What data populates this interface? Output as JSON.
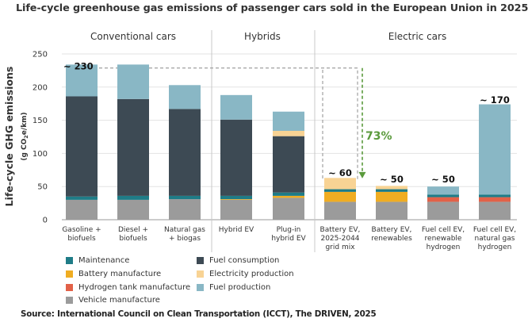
{
  "chart_data": {
    "type": "stacked-bar",
    "title": "Life-cycle greenhouse gas emissions of passenger cars sold in the European Union in 2025",
    "ylabel": "Life-cycle GHG emissions",
    "yunit_prefix": "(g CO",
    "yunit_sub": "2",
    "yunit_suffix": "e/km)",
    "ylim": [
      0,
      250
    ],
    "yticks": [
      0,
      50,
      100,
      150,
      200,
      250
    ],
    "groups": [
      {
        "label": "Conventional cars",
        "members": [
          0,
          1,
          2
        ]
      },
      {
        "label": "Hybrids",
        "members": [
          3,
          4
        ]
      },
      {
        "label": "Electric cars",
        "members": [
          5,
          6,
          7,
          8
        ]
      }
    ],
    "categories": [
      "Gasoline +\nbiofuels",
      "Diesel +\nbiofuels",
      "Natural gas\n+ biogas",
      "Hybrid EV",
      "Plug-in\nhybrid EV",
      "Battery EV,\n2025-2044\ngrid mix",
      "Battery EV,\nrenewables",
      "Fuel cell EV,\nrenewable\nhydrogen",
      "Fuel cell EV,\nnatural gas\nhydrogen"
    ],
    "series": [
      {
        "name": "Vehicle manufacture",
        "color": "#9b9b9b",
        "values": [
          30,
          30,
          31,
          30,
          33,
          27,
          27,
          27,
          27
        ]
      },
      {
        "name": "Battery manufacture",
        "color": "#f0ad22",
        "values": [
          0,
          0,
          0,
          1,
          3,
          15,
          15,
          0,
          0
        ]
      },
      {
        "name": "Hydrogen tank manufacture",
        "color": "#e26148",
        "values": [
          0,
          0,
          0,
          0,
          0,
          0,
          0,
          7,
          7
        ]
      },
      {
        "name": "Maintenance",
        "color": "#1f7c87",
        "values": [
          5,
          6,
          5,
          5,
          5,
          4,
          4,
          4,
          4
        ]
      },
      {
        "name": "Fuel consumption",
        "color": "#3d4a54",
        "values": [
          151,
          146,
          131,
          115,
          85,
          0,
          0,
          0,
          0
        ]
      },
      {
        "name": "Electricity production",
        "color": "#f8d394",
        "values": [
          0,
          0,
          0,
          0,
          8,
          17,
          5,
          0,
          0
        ]
      },
      {
        "name": "Fuel production",
        "color": "#89b7c5",
        "values": [
          48,
          52,
          36,
          37,
          29,
          0,
          0,
          12,
          136
        ]
      }
    ],
    "annotations": [
      {
        "category_index": 0,
        "text": "~ 230",
        "value": 230
      },
      {
        "category_index": 5,
        "text": "~ 60",
        "value": 60
      },
      {
        "category_index": 6,
        "text": "~ 50",
        "value": 50
      },
      {
        "category_index": 7,
        "text": "~ 50",
        "value": 50
      },
      {
        "category_index": 8,
        "text": "~ 170",
        "value": 170
      }
    ],
    "reduction_label": "73%",
    "legend": {
      "columns": [
        [
          "Maintenance",
          "Battery manufacture",
          "Hydrogen tank manufacture",
          "Vehicle manufacture"
        ],
        [
          "Fuel consumption",
          "Electricity production",
          "Fuel production"
        ]
      ]
    }
  },
  "source": "Source: International Council on Clean Transportation (ICCT), The DRIVEN, 2025",
  "colors": {
    "text": "#333333",
    "grid": "#e3e3e3",
    "axis": "#999999",
    "dashed": "#a0a0a0",
    "arrow": "#5a9a3c"
  }
}
